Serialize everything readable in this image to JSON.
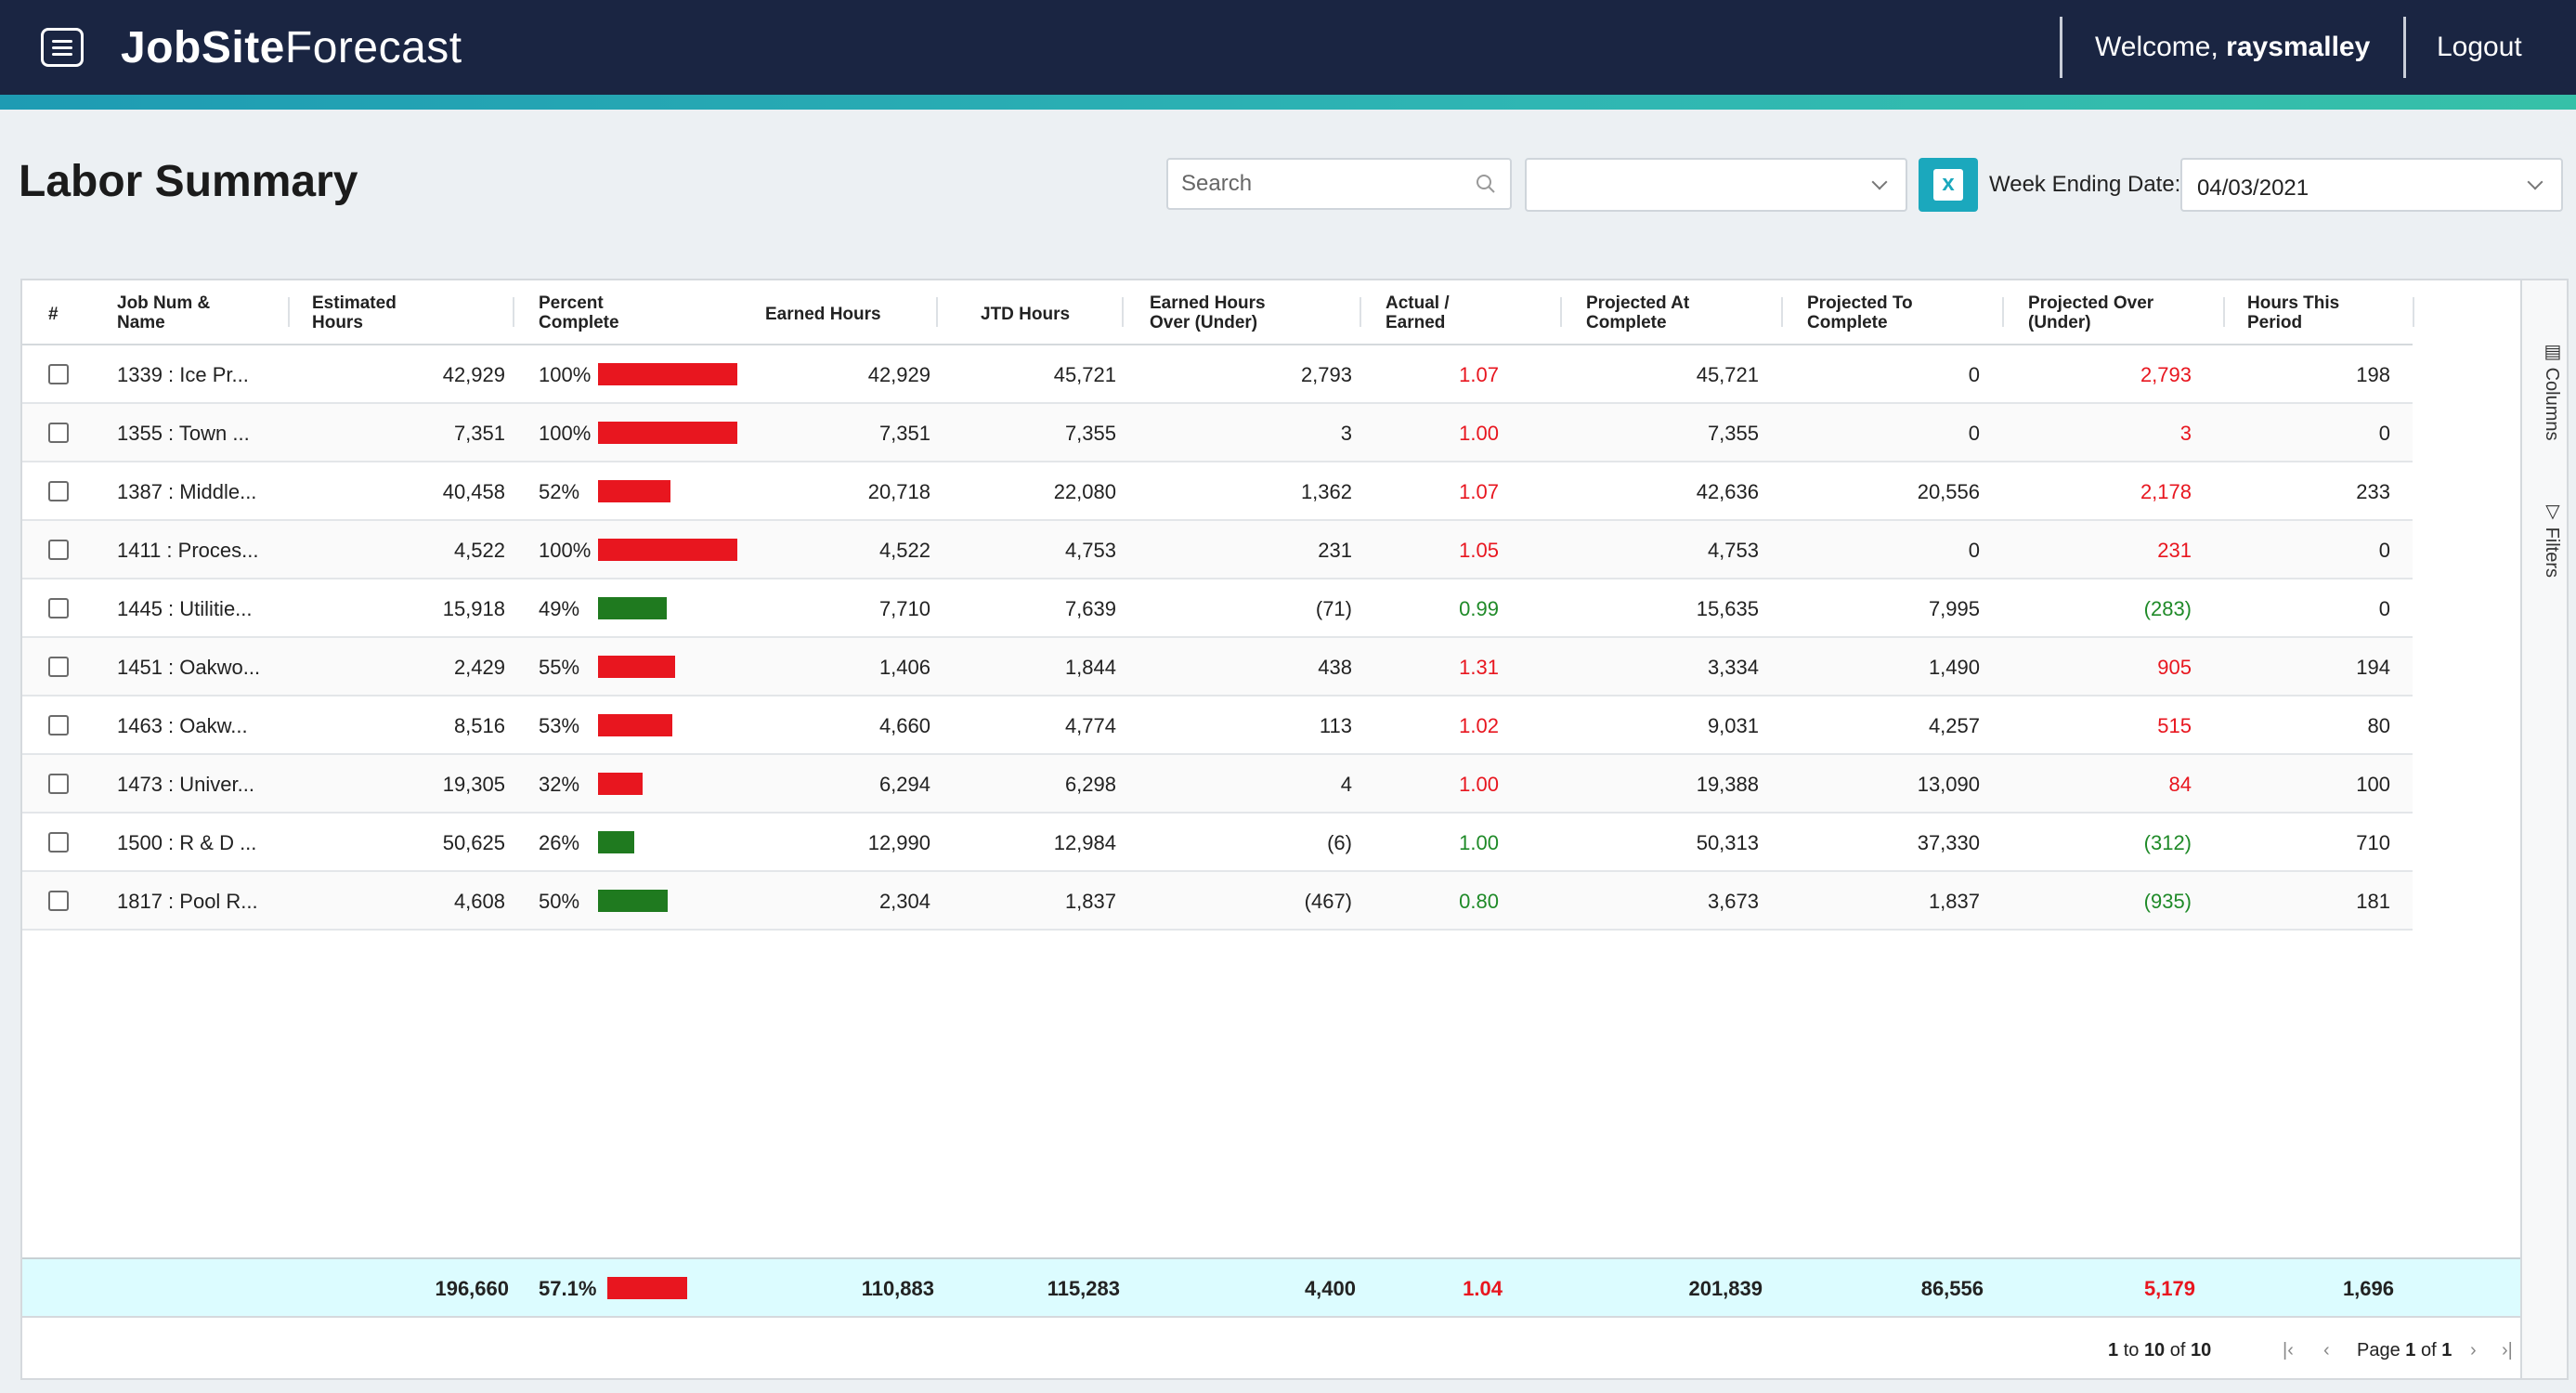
{
  "header": {
    "brand_bold": "JobSite",
    "brand_light": "Forecast",
    "welcome_prefix": "Welcome, ",
    "username": "raysmalley",
    "logout": "Logout"
  },
  "toolbar": {
    "title": "Labor Summary",
    "search_placeholder": "Search",
    "dropdown_value": "",
    "export_icon": "excel-icon",
    "week_label": "Week Ending Date:",
    "week_value": "04/03/2021"
  },
  "columns": {
    "idx": "#",
    "job": [
      "Job Num &",
      "Name"
    ],
    "estimated": [
      "Estimated",
      "Hours"
    ],
    "percent": [
      "Percent",
      "Complete"
    ],
    "earned": "Earned Hours",
    "jtd": "JTD Hours",
    "eho": [
      "Earned Hours",
      "Over (Under)"
    ],
    "ae": [
      "Actual /",
      "Earned"
    ],
    "pac": [
      "Projected At",
      "Complete"
    ],
    "ptc": [
      "Projected To",
      "Complete"
    ],
    "pou": [
      "Projected Over",
      "(Under)"
    ],
    "htp": [
      "Hours This",
      "Period"
    ]
  },
  "rows": [
    {
      "job": "1339 : Ice Pr...",
      "estimated": "42,929",
      "percent": "100%",
      "pct_value": 100,
      "bar_color": "#e8161f",
      "earned": "42,929",
      "jtd": "45,721",
      "eho": "2,793",
      "ae": "1.07",
      "ae_status": "red",
      "pac": "45,721",
      "ptc": "0",
      "pou": "2,793",
      "pou_status": "red",
      "htp": "198"
    },
    {
      "job": "1355 : Town ...",
      "estimated": "7,351",
      "percent": "100%",
      "pct_value": 100,
      "bar_color": "#e8161f",
      "earned": "7,351",
      "jtd": "7,355",
      "eho": "3",
      "ae": "1.00",
      "ae_status": "red",
      "pac": "7,355",
      "ptc": "0",
      "pou": "3",
      "pou_status": "red",
      "htp": "0"
    },
    {
      "job": "1387 : Middle...",
      "estimated": "40,458",
      "percent": "52%",
      "pct_value": 52,
      "bar_color": "#e8161f",
      "earned": "20,718",
      "jtd": "22,080",
      "eho": "1,362",
      "ae": "1.07",
      "ae_status": "red",
      "pac": "42,636",
      "ptc": "20,556",
      "pou": "2,178",
      "pou_status": "red",
      "htp": "233"
    },
    {
      "job": "1411 : Proces...",
      "estimated": "4,522",
      "percent": "100%",
      "pct_value": 100,
      "bar_color": "#e8161f",
      "earned": "4,522",
      "jtd": "4,753",
      "eho": "231",
      "ae": "1.05",
      "ae_status": "red",
      "pac": "4,753",
      "ptc": "0",
      "pou": "231",
      "pou_status": "red",
      "htp": "0"
    },
    {
      "job": "1445 : Utilitie...",
      "estimated": "15,918",
      "percent": "49%",
      "pct_value": 49,
      "bar_color": "#1f7a1f",
      "earned": "7,710",
      "jtd": "7,639",
      "eho": "(71)",
      "ae": "0.99",
      "ae_status": "green",
      "pac": "15,635",
      "ptc": "7,995",
      "pou": "(283)",
      "pou_status": "green",
      "htp": "0"
    },
    {
      "job": "1451 : Oakwo...",
      "estimated": "2,429",
      "percent": "55%",
      "pct_value": 55,
      "bar_color": "#e8161f",
      "earned": "1,406",
      "jtd": "1,844",
      "eho": "438",
      "ae": "1.31",
      "ae_status": "red",
      "pac": "3,334",
      "ptc": "1,490",
      "pou": "905",
      "pou_status": "red",
      "htp": "194"
    },
    {
      "job": "1463 : Oakw...",
      "estimated": "8,516",
      "percent": "53%",
      "pct_value": 53,
      "bar_color": "#e8161f",
      "earned": "4,660",
      "jtd": "4,774",
      "eho": "113",
      "ae": "1.02",
      "ae_status": "red",
      "pac": "9,031",
      "ptc": "4,257",
      "pou": "515",
      "pou_status": "red",
      "htp": "80"
    },
    {
      "job": "1473 : Univer...",
      "estimated": "19,305",
      "percent": "32%",
      "pct_value": 32,
      "bar_color": "#e8161f",
      "earned": "6,294",
      "jtd": "6,298",
      "eho": "4",
      "ae": "1.00",
      "ae_status": "red",
      "pac": "19,388",
      "ptc": "13,090",
      "pou": "84",
      "pou_status": "red",
      "htp": "100"
    },
    {
      "job": "1500 : R & D ...",
      "estimated": "50,625",
      "percent": "26%",
      "pct_value": 26,
      "bar_color": "#1f7a1f",
      "earned": "12,990",
      "jtd": "12,984",
      "eho": "(6)",
      "ae": "1.00",
      "ae_status": "green",
      "pac": "50,313",
      "ptc": "37,330",
      "pou": "(312)",
      "pou_status": "green",
      "htp": "710"
    },
    {
      "job": "1817 : Pool R...",
      "estimated": "4,608",
      "percent": "50%",
      "pct_value": 50,
      "bar_color": "#1f7a1f",
      "earned": "2,304",
      "jtd": "1,837",
      "eho": "(467)",
      "ae": "0.80",
      "ae_status": "green",
      "pac": "3,673",
      "ptc": "1,837",
      "pou": "(935)",
      "pou_status": "green",
      "htp": "181"
    }
  ],
  "totals": {
    "estimated": "196,660",
    "percent": "57.1%",
    "pct_value": 57.1,
    "bar_color": "#e8161f",
    "earned": "110,883",
    "jtd": "115,283",
    "eho": "4,400",
    "ae": "1.04",
    "ae_status": "red",
    "pac": "201,839",
    "ptc": "86,556",
    "pou": "5,179",
    "pou_status": "red",
    "htp": "1,696"
  },
  "side_panel": {
    "columns": "Columns",
    "filters": "Filters"
  },
  "pagination": {
    "range_start": "1",
    "to": "to",
    "range_end": "10",
    "of": "of",
    "total": "10",
    "page_word": "Page",
    "page": "1",
    "page_of": "of",
    "page_count": "1"
  }
}
